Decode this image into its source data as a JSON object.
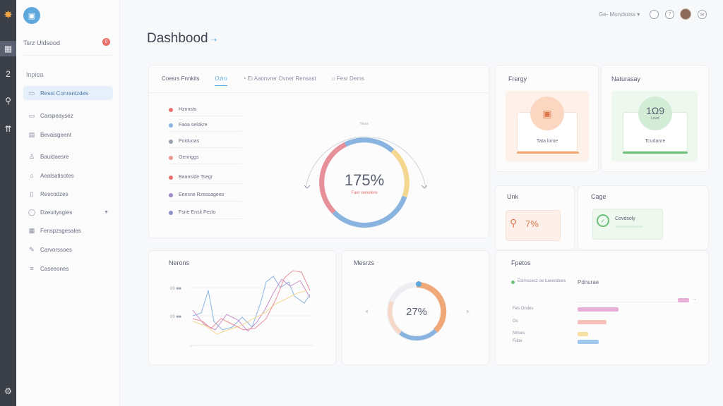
{
  "sidebar": {
    "workspace_title": "Tsrz Uldsood",
    "badge": "0",
    "section_label": "Inpiea",
    "items": [
      {
        "label": "Resst Conrantzdes",
        "icon": "panel-icon"
      },
      {
        "label": "Carspeaysez",
        "icon": "monitor-icon"
      },
      {
        "label": "Bevalsgeent",
        "icon": "document-icon"
      },
      {
        "label": "Bauidaesre",
        "icon": "user-icon"
      },
      {
        "label": "Aealsatisotes",
        "icon": "home-icon"
      },
      {
        "label": "Rescodzes",
        "icon": "tablet-icon"
      },
      {
        "label": "Dzeuitysgies",
        "icon": "chat-icon"
      },
      {
        "label": "Fenspzsgesales",
        "icon": "grid-icon"
      },
      {
        "label": "Carvorssoes",
        "icon": "pen-icon"
      },
      {
        "label": "Caseeones",
        "icon": "list-icon"
      }
    ]
  },
  "header": {
    "title": "Dashbood",
    "user_label": "Ge- Mondsoss"
  },
  "overview": {
    "tabs": [
      "Coesrs Fnnkits",
      "Ozro",
      "Ei Aaonvrer Ovner Rensast",
      "Fesr Dems"
    ],
    "list": [
      {
        "label": "Hznnsts",
        "color": "#e8706a"
      },
      {
        "label": "Faoa selokre",
        "color": "#8ab4e0"
      },
      {
        "label": "Poiduoas",
        "color": "#9aa0ae"
      },
      {
        "label": "Oenriggs",
        "color": "#e89a8a"
      },
      {
        "label": "Baanside Tsegr",
        "color": "#e8706a"
      },
      {
        "label": "Eensne Rzessagees",
        "color": "#a08ac8"
      },
      {
        "label": "Fsne Ensk Festo",
        "color": "#8a90c8"
      }
    ],
    "gauge": {
      "value": "175%",
      "sublabel": "Faer oenelere",
      "caption": "Neas"
    }
  },
  "energy": {
    "title": "Frergy",
    "icon_label": "Tata lome"
  },
  "naturesay": {
    "title": "Naturasay",
    "value": "1Ω9",
    "sub": "Lsvst",
    "icon_label": "Tcudanre"
  },
  "unk": {
    "title": "Unk",
    "value": "7%"
  },
  "cage": {
    "title": "Cage",
    "label": "Covdsoly"
  },
  "lower_left": {
    "title": "Nerons",
    "y_labels": [
      "00 ■■",
      "00 ■■"
    ]
  },
  "lower_mid": {
    "title": "Mesrzs",
    "donut_value": "27%",
    "donut_fraction": 0.27
  },
  "lower_right": {
    "title": "Fpetos",
    "legend_a": "Eslrnscecz oe tuevetdoes",
    "legend_b": "Pdnurae",
    "rows": [
      {
        "label": "Fes Ondes",
        "color": "#e8b0d8",
        "value": 0.27
      },
      {
        "label": "Os",
        "color": "#f5c0b8",
        "value": 0.19
      },
      {
        "label": "Nrtses",
        "color": "#f7e0a0",
        "value": 0.07
      },
      {
        "label": "Fdoe",
        "color": "#a0c8ec",
        "value": 0.14
      }
    ]
  },
  "colors": {
    "accent": "#5fa8dc",
    "coral": "#e8706a",
    "peach": "#f0a878",
    "green": "#6ec07a",
    "lavender": "#b090d0"
  }
}
